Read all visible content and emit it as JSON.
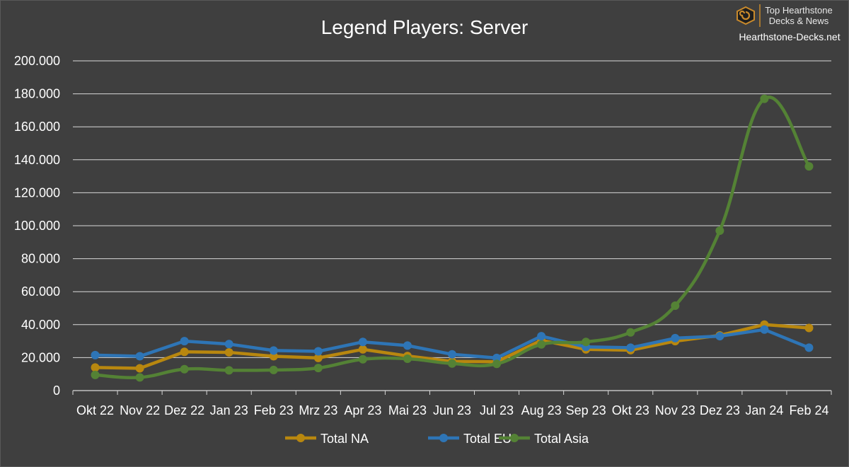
{
  "brand": {
    "line1": "Top Hearthstone",
    "line2": "Decks & News",
    "site": "Hearthstone-Decks.net",
    "accent": "#c98a2c"
  },
  "chart_data": {
    "type": "line",
    "title": "Legend Players: Server",
    "xlabel": "",
    "ylabel": "",
    "categories": [
      "Okt 22",
      "Nov 22",
      "Dez 22",
      "Jan 23",
      "Feb 23",
      "Mrz 23",
      "Apr 23",
      "Mai 23",
      "Jun 23",
      "Jul 23",
      "Aug 23",
      "Sep 23",
      "Okt 23",
      "Nov 23",
      "Dez 23",
      "Jan 24",
      "Feb 24"
    ],
    "ylim": [
      0,
      200000
    ],
    "yticks": [
      0,
      20000,
      40000,
      60000,
      80000,
      100000,
      120000,
      140000,
      160000,
      180000,
      200000
    ],
    "ytick_labels": [
      "0",
      "20.000",
      "40.000",
      "60.000",
      "80.000",
      "100.000",
      "120.000",
      "140.000",
      "160.000",
      "180.000",
      "200.000"
    ],
    "grid": true,
    "legend_position": "bottom",
    "series": [
      {
        "name": "Total NA",
        "color": "#b8870f",
        "smooth": false,
        "values": [
          14000,
          13500,
          23500,
          23200,
          20800,
          19800,
          25000,
          21000,
          17700,
          17500,
          30500,
          25000,
          24500,
          30000,
          33500,
          40000,
          38000
        ]
      },
      {
        "name": "Total EU",
        "color": "#2e75b6",
        "smooth": false,
        "values": [
          21500,
          20800,
          30000,
          28200,
          24300,
          23800,
          29500,
          27300,
          22000,
          19800,
          33000,
          26500,
          26000,
          31800,
          33000,
          37000,
          26000
        ]
      },
      {
        "name": "Total Asia",
        "color": "#548235",
        "smooth": true,
        "values": [
          9500,
          8000,
          13000,
          12300,
          12500,
          13700,
          19000,
          19300,
          16400,
          16200,
          28000,
          29500,
          35300,
          51500,
          97000,
          177000,
          136000
        ]
      }
    ]
  }
}
